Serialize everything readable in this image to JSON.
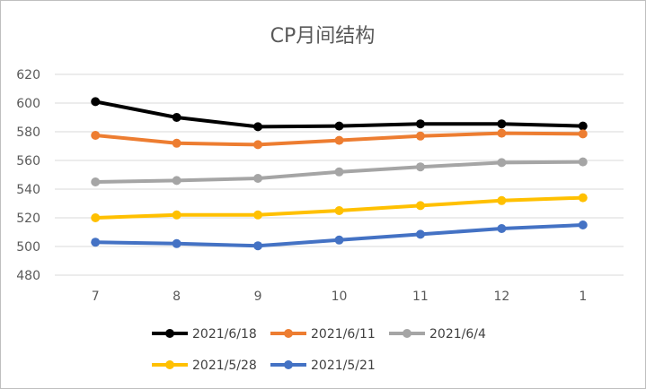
{
  "chart_data": {
    "type": "line",
    "title": "CP月间结构",
    "xlabel": "",
    "ylabel": "",
    "categories": [
      "7",
      "8",
      "9",
      "10",
      "11",
      "12",
      "1"
    ],
    "ylim": [
      480,
      620
    ],
    "yticks": [
      "620",
      "600",
      "580",
      "560",
      "540",
      "520",
      "500",
      "480"
    ],
    "grid": "horizontal",
    "legend": "bottom",
    "series": [
      {
        "name": "2021/6/18",
        "color": "#000000",
        "values": [
          601,
          590,
          583.5,
          584,
          585.5,
          585.5,
          584
        ]
      },
      {
        "name": "2021/6/11",
        "color": "#ED7D31",
        "values": [
          577.5,
          572,
          571,
          574,
          577,
          579,
          578.5
        ]
      },
      {
        "name": "2021/6/4",
        "color": "#A5A5A5",
        "values": [
          545,
          546,
          547.5,
          552,
          555.5,
          558.5,
          559
        ]
      },
      {
        "name": "2021/5/28",
        "color": "#FFC000",
        "values": [
          520,
          522,
          522,
          525,
          528.5,
          532,
          534
        ]
      },
      {
        "name": "2021/5/21",
        "color": "#4472C4",
        "values": [
          503,
          502,
          500.5,
          504.5,
          508.5,
          512.5,
          515
        ]
      }
    ]
  }
}
